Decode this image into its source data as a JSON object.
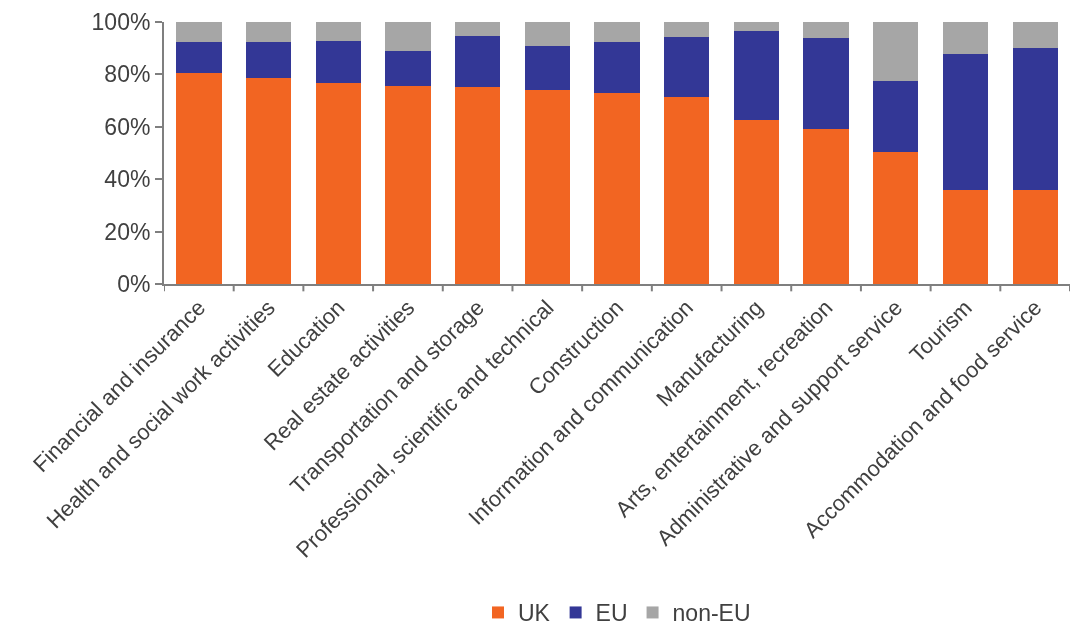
{
  "chart_data": {
    "type": "bar",
    "stacked": true,
    "categories": [
      "Financial and insurance",
      "Health and social work activities",
      "Education",
      "Real estate activities",
      "Transportation and storage",
      "Professional, scientific and technical",
      "Construction",
      "Information and communication",
      "Manufacturing",
      "Arts, entertainment, recreation",
      "Administrative and support service",
      "Tourism",
      "Accommodation and food service"
    ],
    "series": [
      {
        "name": "UK",
        "color": "#f26522",
        "values": [
          80.6,
          78.6,
          76.6,
          75.6,
          75.2,
          73.9,
          72.8,
          71.4,
          62.5,
          59.3,
          50.4,
          36.0,
          35.9
        ]
      },
      {
        "name": "EU",
        "color": "#333796",
        "values": [
          11.6,
          13.7,
          16.1,
          13.2,
          19.6,
          16.9,
          19.4,
          23.0,
          33.9,
          34.5,
          26.9,
          51.8,
          54.0
        ]
      },
      {
        "name": "non-EU",
        "color": "#a6a6a6",
        "values": [
          7.8,
          7.7,
          7.3,
          11.2,
          5.2,
          9.2,
          7.8,
          5.6,
          3.6,
          6.2,
          22.7,
          12.2,
          10.1
        ]
      }
    ],
    "ylim": [
      0,
      100
    ],
    "yticks": [
      {
        "value": 0,
        "label": "0%"
      },
      {
        "value": 20,
        "label": "20%"
      },
      {
        "value": 40,
        "label": "40%"
      },
      {
        "value": 60,
        "label": "60%"
      },
      {
        "value": 80,
        "label": "80%"
      },
      {
        "value": 100,
        "label": "100%"
      }
    ],
    "legend": "bottom",
    "grid": false
  }
}
